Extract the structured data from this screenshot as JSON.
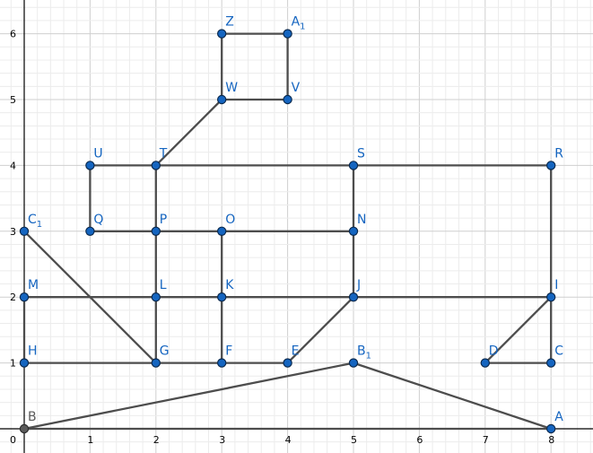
{
  "diagram": {
    "type": "geometry-graph",
    "x_ticks": [
      "0",
      "1",
      "2",
      "3",
      "4",
      "5",
      "6",
      "7",
      "8"
    ],
    "y_ticks": [
      "1",
      "2",
      "3",
      "4",
      "5",
      "6"
    ],
    "points": [
      {
        "id": "A",
        "label": "A",
        "sub": "",
        "x": 8,
        "y": 0
      },
      {
        "id": "B",
        "label": "B",
        "sub": "",
        "x": 0,
        "y": 0,
        "color": "dark"
      },
      {
        "id": "C",
        "label": "C",
        "sub": "",
        "x": 8,
        "y": 1
      },
      {
        "id": "D",
        "label": "D",
        "sub": "",
        "x": 7,
        "y": 1
      },
      {
        "id": "E",
        "label": "E",
        "sub": "",
        "x": 4,
        "y": 1
      },
      {
        "id": "F",
        "label": "F",
        "sub": "",
        "x": 3,
        "y": 1
      },
      {
        "id": "G",
        "label": "G",
        "sub": "",
        "x": 2,
        "y": 1
      },
      {
        "id": "H",
        "label": "H",
        "sub": "",
        "x": 0,
        "y": 1
      },
      {
        "id": "I",
        "label": "I",
        "sub": "",
        "x": 8,
        "y": 2
      },
      {
        "id": "J",
        "label": "J",
        "sub": "",
        "x": 5,
        "y": 2
      },
      {
        "id": "K",
        "label": "K",
        "sub": "",
        "x": 3,
        "y": 2
      },
      {
        "id": "L",
        "label": "L",
        "sub": "",
        "x": 2,
        "y": 2
      },
      {
        "id": "M",
        "label": "M",
        "sub": "",
        "x": 0,
        "y": 2
      },
      {
        "id": "N",
        "label": "N",
        "sub": "",
        "x": 5,
        "y": 3
      },
      {
        "id": "O",
        "label": "O",
        "sub": "",
        "x": 3,
        "y": 3
      },
      {
        "id": "P",
        "label": "P",
        "sub": "",
        "x": 2,
        "y": 3
      },
      {
        "id": "Q",
        "label": "Q",
        "sub": "",
        "x": 1,
        "y": 3
      },
      {
        "id": "C1",
        "label": "C",
        "sub": "1",
        "x": 0,
        "y": 3
      },
      {
        "id": "R",
        "label": "R",
        "sub": "",
        "x": 8,
        "y": 4
      },
      {
        "id": "S",
        "label": "S",
        "sub": "",
        "x": 5,
        "y": 4
      },
      {
        "id": "T",
        "label": "T",
        "sub": "",
        "x": 2,
        "y": 4
      },
      {
        "id": "U",
        "label": "U",
        "sub": "",
        "x": 1,
        "y": 4
      },
      {
        "id": "V",
        "label": "V",
        "sub": "",
        "x": 4,
        "y": 5
      },
      {
        "id": "W",
        "label": "W",
        "sub": "",
        "x": 3,
        "y": 5
      },
      {
        "id": "Z",
        "label": "Z",
        "sub": "",
        "x": 3,
        "y": 6
      },
      {
        "id": "A1",
        "label": "A",
        "sub": "1",
        "x": 4,
        "y": 6
      },
      {
        "id": "B1",
        "label": "B",
        "sub": "1",
        "x": 5,
        "y": 1
      }
    ],
    "segments": [
      [
        "B",
        "A"
      ],
      [
        "B",
        "B1"
      ],
      [
        "B1",
        "A"
      ],
      [
        "H",
        "G"
      ],
      [
        "G",
        "F"
      ],
      [
        "F",
        "E"
      ],
      [
        "E",
        "J"
      ],
      [
        "D",
        "C"
      ],
      [
        "D",
        "I"
      ],
      [
        "C",
        "I"
      ],
      [
        "M",
        "H"
      ],
      [
        "M",
        "L"
      ],
      [
        "L",
        "K"
      ],
      [
        "K",
        "J"
      ],
      [
        "J",
        "I"
      ],
      [
        "C1",
        "G"
      ],
      [
        "Q",
        "P"
      ],
      [
        "P",
        "O"
      ],
      [
        "O",
        "N"
      ],
      [
        "N",
        "J"
      ],
      [
        "N",
        "S"
      ],
      [
        "L",
        "G"
      ],
      [
        "L",
        "P"
      ],
      [
        "K",
        "F"
      ],
      [
        "K",
        "O"
      ],
      [
        "P",
        "T"
      ],
      [
        "U",
        "Q"
      ],
      [
        "U",
        "T"
      ],
      [
        "T",
        "S"
      ],
      [
        "S",
        "R"
      ],
      [
        "R",
        "I"
      ],
      [
        "T",
        "W"
      ],
      [
        "W",
        "V"
      ],
      [
        "W",
        "Z"
      ],
      [
        "V",
        "A1"
      ],
      [
        "Z",
        "A1"
      ]
    ]
  }
}
